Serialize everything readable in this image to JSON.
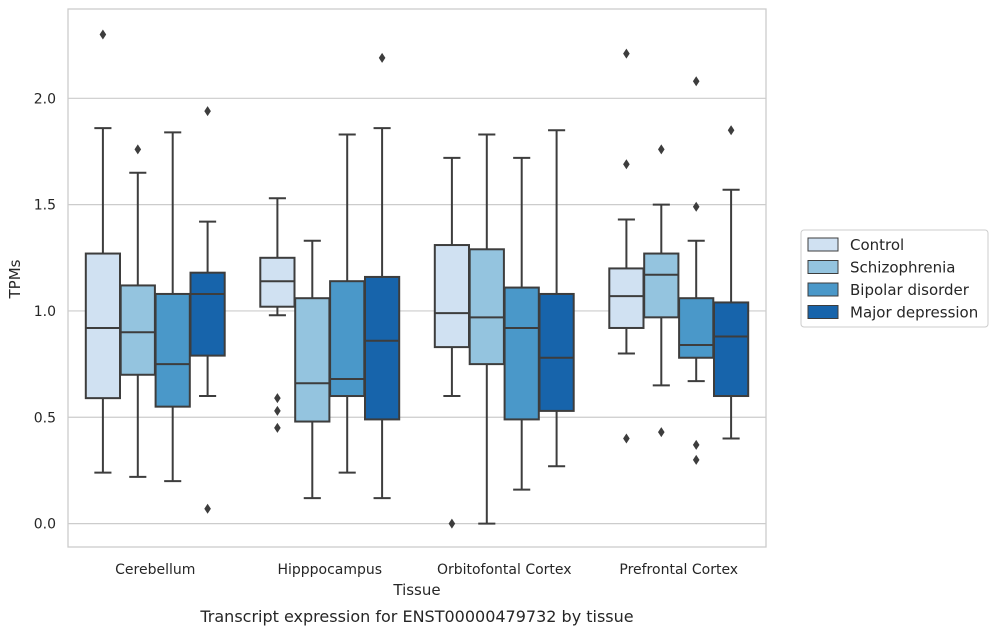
{
  "chart_data": {
    "type": "boxplot",
    "xlabel": "Tissue",
    "ylabel": "TPMs",
    "caption": "Transcript expression for ENST00000479732 by tissue",
    "ylim": [
      -0.11,
      2.42
    ],
    "yticks": [
      0.0,
      0.5,
      1.0,
      1.5,
      2.0
    ],
    "ytick_labels": [
      "0.0",
      "0.5",
      "1.0",
      "1.5",
      "2.0"
    ],
    "grid": "horizontal",
    "legend_placement": "right-center",
    "categories": [
      "Cerebellum",
      "Hipppocampus",
      "Orbitofontal Cortex",
      "Prefrontal Cortex"
    ],
    "series": [
      {
        "name": "Control",
        "color": "#d0e1f2",
        "boxes": [
          {
            "whislo": 0.24,
            "q1": 0.59,
            "med": 0.92,
            "q3": 1.27,
            "whishi": 1.86,
            "fliers": [
              2.3
            ]
          },
          {
            "whislo": 0.98,
            "q1": 1.02,
            "med": 1.14,
            "q3": 1.25,
            "whishi": 1.53,
            "fliers": [
              0.59,
              0.53,
              0.45
            ]
          },
          {
            "whislo": 0.6,
            "q1": 0.83,
            "med": 0.99,
            "q3": 1.31,
            "whishi": 1.72,
            "fliers": [
              0.0
            ]
          },
          {
            "whislo": 0.8,
            "q1": 0.92,
            "med": 1.07,
            "q3": 1.2,
            "whishi": 1.43,
            "fliers": [
              2.21,
              1.69,
              0.4
            ]
          }
        ]
      },
      {
        "name": "Schizophrenia",
        "color": "#94c4df",
        "boxes": [
          {
            "whislo": 0.22,
            "q1": 0.7,
            "med": 0.9,
            "q3": 1.12,
            "whishi": 1.65,
            "fliers": [
              1.76
            ]
          },
          {
            "whislo": 0.12,
            "q1": 0.48,
            "med": 0.66,
            "q3": 1.06,
            "whishi": 1.33,
            "fliers": []
          },
          {
            "whislo": 0.0,
            "q1": 0.75,
            "med": 0.97,
            "q3": 1.29,
            "whishi": 1.83,
            "fliers": []
          },
          {
            "whislo": 0.65,
            "q1": 0.97,
            "med": 1.17,
            "q3": 1.27,
            "whishi": 1.5,
            "fliers": [
              1.76,
              0.43
            ]
          }
        ]
      },
      {
        "name": "Bipolar disorder",
        "color": "#4a98c9",
        "boxes": [
          {
            "whislo": 0.2,
            "q1": 0.55,
            "med": 0.75,
            "q3": 1.08,
            "whishi": 1.84,
            "fliers": []
          },
          {
            "whislo": 0.24,
            "q1": 0.6,
            "med": 0.68,
            "q3": 1.14,
            "whishi": 1.83,
            "fliers": []
          },
          {
            "whislo": 0.16,
            "q1": 0.49,
            "med": 0.92,
            "q3": 1.11,
            "whishi": 1.72,
            "fliers": []
          },
          {
            "whislo": 0.67,
            "q1": 0.78,
            "med": 0.84,
            "q3": 1.06,
            "whishi": 1.33,
            "fliers": [
              2.08,
              1.49,
              0.37,
              0.3
            ]
          }
        ]
      },
      {
        "name": "Major depression",
        "color": "#1764ab",
        "boxes": [
          {
            "whislo": 0.6,
            "q1": 0.79,
            "med": 1.08,
            "q3": 1.18,
            "whishi": 1.42,
            "fliers": [
              1.94,
              0.07
            ]
          },
          {
            "whislo": 0.12,
            "q1": 0.49,
            "med": 0.86,
            "q3": 1.16,
            "whishi": 1.86,
            "fliers": [
              2.19
            ]
          },
          {
            "whislo": 0.27,
            "q1": 0.53,
            "med": 0.78,
            "q3": 1.08,
            "whishi": 1.85,
            "fliers": []
          },
          {
            "whislo": 0.4,
            "q1": 0.6,
            "med": 0.88,
            "q3": 1.04,
            "whishi": 1.57,
            "fliers": [
              1.85
            ]
          }
        ]
      }
    ]
  }
}
